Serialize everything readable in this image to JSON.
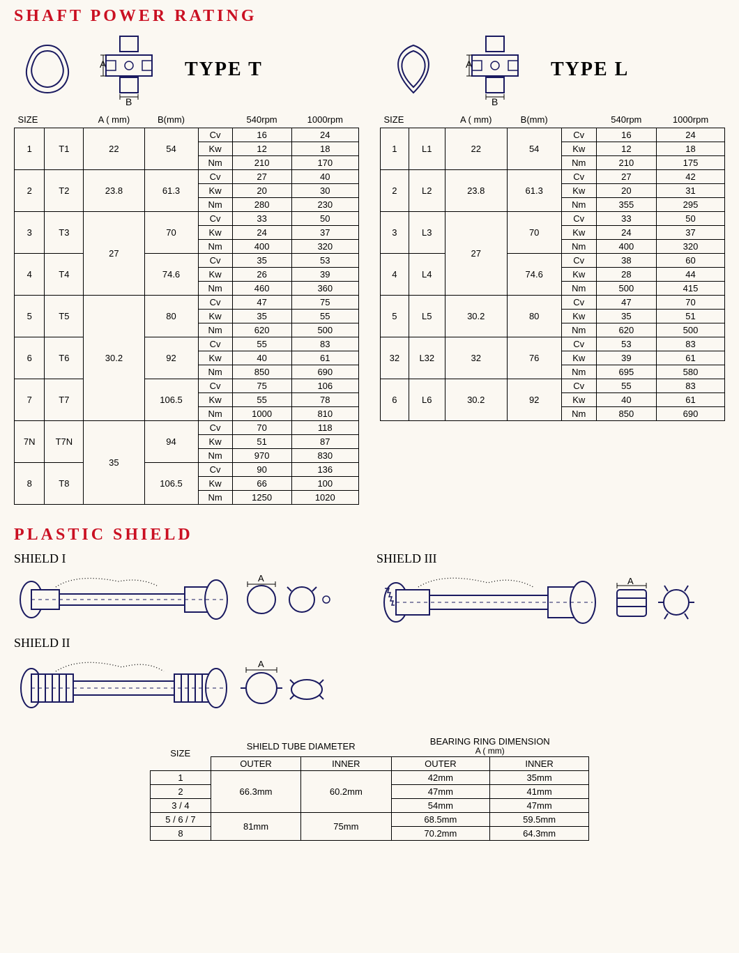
{
  "heading_power": "SHAFT POWER RATING",
  "heading_shield": "PLASTIC SHIELD",
  "typeT": {
    "label": "TYPE T",
    "A_label": "A",
    "B_label": "B"
  },
  "typeL": {
    "label": "TYPE L",
    "A_label": "A",
    "B_label": "B"
  },
  "power_headers": {
    "size": "SIZE",
    "a": "A ( mm)",
    "b": "B(mm)",
    "rpm1": "540rpm",
    "rpm2": "1000rpm"
  },
  "metrics": {
    "cv": "Cv",
    "kw": "Kw",
    "nm": "Nm"
  },
  "tableT": [
    {
      "n": "1",
      "code": "T1",
      "a": "22",
      "b": "54",
      "cv": [
        "16",
        "24"
      ],
      "kw": [
        "12",
        "18"
      ],
      "nm": [
        "210",
        "170"
      ]
    },
    {
      "n": "2",
      "code": "T2",
      "a": "23.8",
      "b": "61.3",
      "cv": [
        "27",
        "40"
      ],
      "kw": [
        "20",
        "30"
      ],
      "nm": [
        "280",
        "230"
      ]
    },
    {
      "n": "3",
      "code": "T3",
      "a": "27",
      "a_span": 2,
      "b": "70",
      "cv": [
        "33",
        "50"
      ],
      "kw": [
        "24",
        "37"
      ],
      "nm": [
        "400",
        "320"
      ]
    },
    {
      "n": "4",
      "code": "T4",
      "b": "74.6",
      "cv": [
        "35",
        "53"
      ],
      "kw": [
        "26",
        "39"
      ],
      "nm": [
        "460",
        "360"
      ]
    },
    {
      "n": "5",
      "code": "T5",
      "a": "30.2",
      "a_span": 3,
      "b": "80",
      "cv": [
        "47",
        "75"
      ],
      "kw": [
        "35",
        "55"
      ],
      "nm": [
        "620",
        "500"
      ]
    },
    {
      "n": "6",
      "code": "T6",
      "b": "92",
      "cv": [
        "55",
        "83"
      ],
      "kw": [
        "40",
        "61"
      ],
      "nm": [
        "850",
        "690"
      ]
    },
    {
      "n": "7",
      "code": "T7",
      "b": "106.5",
      "cv": [
        "75",
        "106"
      ],
      "kw": [
        "55",
        "78"
      ],
      "nm": [
        "1000",
        "810"
      ]
    },
    {
      "n": "7N",
      "code": "T7N",
      "a": "35",
      "a_span": 2,
      "b": "94",
      "cv": [
        "70",
        "118"
      ],
      "kw": [
        "51",
        "87"
      ],
      "nm": [
        "970",
        "830"
      ]
    },
    {
      "n": "8",
      "code": "T8",
      "b": "106.5",
      "cv": [
        "90",
        "136"
      ],
      "kw": [
        "66",
        "100"
      ],
      "nm": [
        "1250",
        "1020"
      ]
    }
  ],
  "tableL": [
    {
      "n": "1",
      "code": "L1",
      "a": "22",
      "b": "54",
      "cv": [
        "16",
        "24"
      ],
      "kw": [
        "12",
        "18"
      ],
      "nm": [
        "210",
        "175"
      ]
    },
    {
      "n": "2",
      "code": "L2",
      "a": "23.8",
      "b": "61.3",
      "cv": [
        "27",
        "42"
      ],
      "kw": [
        "20",
        "31"
      ],
      "nm": [
        "355",
        "295"
      ]
    },
    {
      "n": "3",
      "code": "L3",
      "a": "27",
      "a_span": 2,
      "b": "70",
      "cv": [
        "33",
        "50"
      ],
      "kw": [
        "24",
        "37"
      ],
      "nm": [
        "400",
        "320"
      ]
    },
    {
      "n": "4",
      "code": "L4",
      "b": "74.6",
      "cv": [
        "38",
        "60"
      ],
      "kw": [
        "28",
        "44"
      ],
      "nm": [
        "500",
        "415"
      ]
    },
    {
      "n": "5",
      "code": "L5",
      "a": "30.2",
      "b": "80",
      "cv": [
        "47",
        "70"
      ],
      "kw": [
        "35",
        "51"
      ],
      "nm": [
        "620",
        "500"
      ]
    },
    {
      "n": "32",
      "code": "L32",
      "a": "32",
      "b": "76",
      "cv": [
        "53",
        "83"
      ],
      "kw": [
        "39",
        "61"
      ],
      "nm": [
        "695",
        "580"
      ]
    },
    {
      "n": "6",
      "code": "L6",
      "a": "30.2",
      "b": "92",
      "cv": [
        "55",
        "83"
      ],
      "kw": [
        "40",
        "61"
      ],
      "nm": [
        "850",
        "690"
      ]
    }
  ],
  "shield": {
    "label1": "SHIELD I",
    "label2": "SHIELD II",
    "label3": "SHIELD III",
    "A": "A",
    "headers": {
      "size": "SIZE",
      "tube": "SHIELD TUBE DIAMETER",
      "bearing": "BEARING RING DIMENSION",
      "bearing_sub": "A ( mm)",
      "outer": "OUTER",
      "inner": "INNER"
    },
    "rows": [
      {
        "size": "1",
        "t_out": "66.3mm",
        "t_out_span": 3,
        "t_in": "60.2mm",
        "t_in_span": 3,
        "b_out": "42mm",
        "b_in": "35mm"
      },
      {
        "size": "2",
        "b_out": "47mm",
        "b_in": "41mm"
      },
      {
        "size": "3 / 4",
        "b_out": "54mm",
        "b_in": "47mm"
      },
      {
        "size": "5 / 6 / 7",
        "t_out": "81mm",
        "t_out_span": 2,
        "t_in": "75mm",
        "t_in_span": 2,
        "b_out": "68.5mm",
        "b_in": "59.5mm"
      },
      {
        "size": "8",
        "b_out": "70.2mm",
        "b_in": "64.3mm"
      }
    ]
  },
  "colors": {
    "heading": "#ca1022",
    "line": "#1a1a60",
    "bg": "#fbf8f2"
  }
}
